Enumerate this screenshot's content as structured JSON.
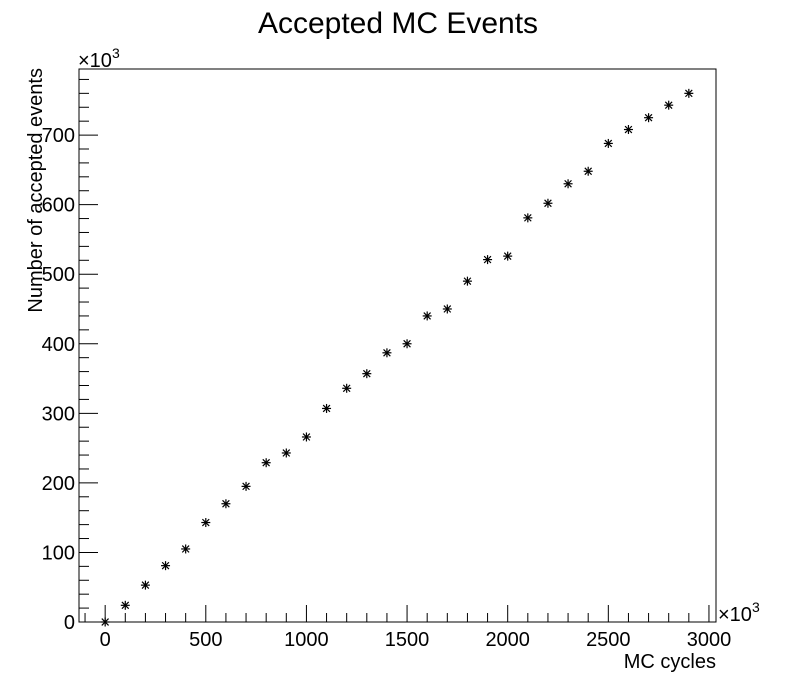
{
  "chart_data": {
    "type": "scatter",
    "title": "Accepted MC Events",
    "xlabel": "MC cycles",
    "ylabel": "Number of accepted events",
    "x_multiplier": "×10",
    "x_multiplier_exp": "3",
    "y_multiplier": "×10",
    "y_multiplier_exp": "3",
    "xlim": [
      -130,
      3035
    ],
    "ylim": [
      0,
      795
    ],
    "x_ticks": [
      0,
      500,
      1000,
      1500,
      2000,
      2500,
      3000
    ],
    "y_ticks": [
      0,
      100,
      200,
      300,
      400,
      500,
      600,
      700
    ],
    "grid": false,
    "marker": "*",
    "series": [
      {
        "x": [
          0,
          100,
          200,
          300,
          400,
          500,
          600,
          700,
          800,
          900,
          1000,
          1100,
          1200,
          1300,
          1400,
          1500,
          1600,
          1700,
          1800,
          1900,
          2000,
          2100,
          2200,
          2300,
          2400,
          2500,
          2600,
          2700,
          2800,
          2900
        ],
        "y": [
          0,
          24,
          53,
          81,
          105,
          143,
          170,
          195,
          229,
          243,
          266,
          307,
          336,
          357,
          387,
          400,
          440,
          450,
          490,
          521,
          526,
          581,
          602,
          630,
          648,
          688,
          708,
          725,
          743,
          760
        ]
      }
    ]
  }
}
